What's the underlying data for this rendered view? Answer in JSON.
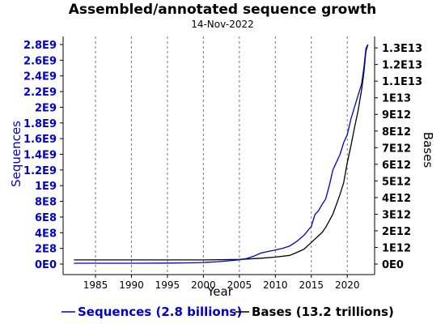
{
  "colors": {
    "sequences": "#0000cc",
    "bases": "#000000",
    "grid": "#777777",
    "axis": "#000000"
  },
  "chart_data": {
    "type": "line",
    "title": "Assembled/annotated sequence growth",
    "subtitle": "14-Nov-2022",
    "xlabel": "Year",
    "ylabel_left": "Sequences",
    "ylabel_right": "Bases",
    "xlim": [
      1980.5,
      2023.8
    ],
    "ylim_left": [
      0,
      2800000000.0
    ],
    "ylim_right": [
      0,
      13200000000000.0
    ],
    "x_ticks": [
      1985,
      1990,
      1995,
      2000,
      2005,
      2010,
      2015,
      2020
    ],
    "x_tick_labels": [
      "1985",
      "1990",
      "1995",
      "2000",
      "2005",
      "2010",
      "2015",
      "2020"
    ],
    "y_left_ticks": [
      0,
      200000000.0,
      400000000.0,
      600000000.0,
      800000000.0,
      1000000000.0,
      1200000000.0,
      1400000000.0,
      1600000000.0,
      1800000000.0,
      2000000000.0,
      2200000000.0,
      2400000000.0,
      2600000000.0,
      2800000000.0
    ],
    "y_left_tick_labels": [
      "0E0",
      "2E8",
      "4E8",
      "6E8",
      "8E8",
      "1E9",
      "1.2E9",
      "1.4E9",
      "1.6E9",
      "1.8E9",
      "2E9",
      "2.2E9",
      "2.4E9",
      "2.6E9",
      "2.8E9"
    ],
    "y_right_ticks": [
      0,
      1000000000000.0,
      2000000000000.0,
      3000000000000.0,
      4000000000000.0,
      5000000000000.0,
      6000000000000.0,
      7000000000000.0,
      8000000000000.0,
      9000000000000.0,
      10000000000000.0,
      11000000000000.0,
      12000000000000.0,
      13000000000000.0
    ],
    "y_right_tick_labels": [
      "0E0",
      "1E12",
      "2E12",
      "3E12",
      "4E12",
      "5E12",
      "6E12",
      "7E12",
      "8E12",
      "9E12",
      "1E13",
      "1.1E13",
      "1.2E13",
      "1.3E13"
    ],
    "grid": "vertical dashed",
    "legend_position": "bottom",
    "series": [
      {
        "name": "Sequences (2.8 billions)",
        "axis": "left",
        "x": [
          1982,
          1985,
          1990,
          1995,
          1998,
          2000,
          2002,
          2004,
          2005,
          2006,
          2007,
          2008,
          2009,
          2010,
          2011,
          2012,
          2013,
          2014,
          2015,
          2015.5,
          2016,
          2016.5,
          2017,
          2017.5,
          2018,
          2018.5,
          2019,
          2019.5,
          2020,
          2020.5,
          2021,
          2021.5,
          2022,
          2022.3,
          2022.6,
          2022.87
        ],
        "y": [
          10000000.0,
          10000000.0,
          10000000.0,
          12000000.0,
          15000000.0,
          20000000.0,
          30000000.0,
          45000000.0,
          55000000.0,
          70000000.0,
          100000000.0,
          140000000.0,
          160000000.0,
          180000000.0,
          200000000.0,
          230000000.0,
          290000000.0,
          370000000.0,
          480000000.0,
          630000000.0,
          680000000.0,
          760000000.0,
          830000000.0,
          1000000000.0,
          1200000000.0,
          1300000000.0,
          1400000000.0,
          1550000000.0,
          1650000000.0,
          1850000000.0,
          2000000000.0,
          2150000000.0,
          2300000000.0,
          2500000000.0,
          2750000000.0,
          2800000000.0
        ]
      },
      {
        "name": "Bases (13.2 trillions)",
        "axis": "right",
        "x": [
          1982,
          1985,
          1990,
          1995,
          2000,
          2005,
          2008,
          2010,
          2012,
          2013,
          2014,
          2015,
          2015.5,
          2016,
          2016.5,
          2017,
          2017.5,
          2018,
          2018.5,
          2019,
          2019.5,
          2020,
          2020.5,
          2021,
          2021.5,
          2022,
          2022.3,
          2022.6,
          2022.87
        ],
        "y": [
          250000000000.0,
          250000000000.0,
          250000000000.0,
          250000000000.0,
          250000000000.0,
          280000000000.0,
          350000000000.0,
          420000000000.0,
          520000000000.0,
          700000000000.0,
          900000000000.0,
          1300000000000.0,
          1500000000000.0,
          1700000000000.0,
          1900000000000.0,
          2200000000000.0,
          2600000000000.0,
          3000000000000.0,
          3600000000000.0,
          4200000000000.0,
          4900000000000.0,
          6100000000000.0,
          7100000000000.0,
          8200000000000.0,
          9200000000000.0,
          10500000000000.0,
          11500000000000.0,
          12800000000000.0,
          13200000000000.0
        ]
      }
    ]
  }
}
